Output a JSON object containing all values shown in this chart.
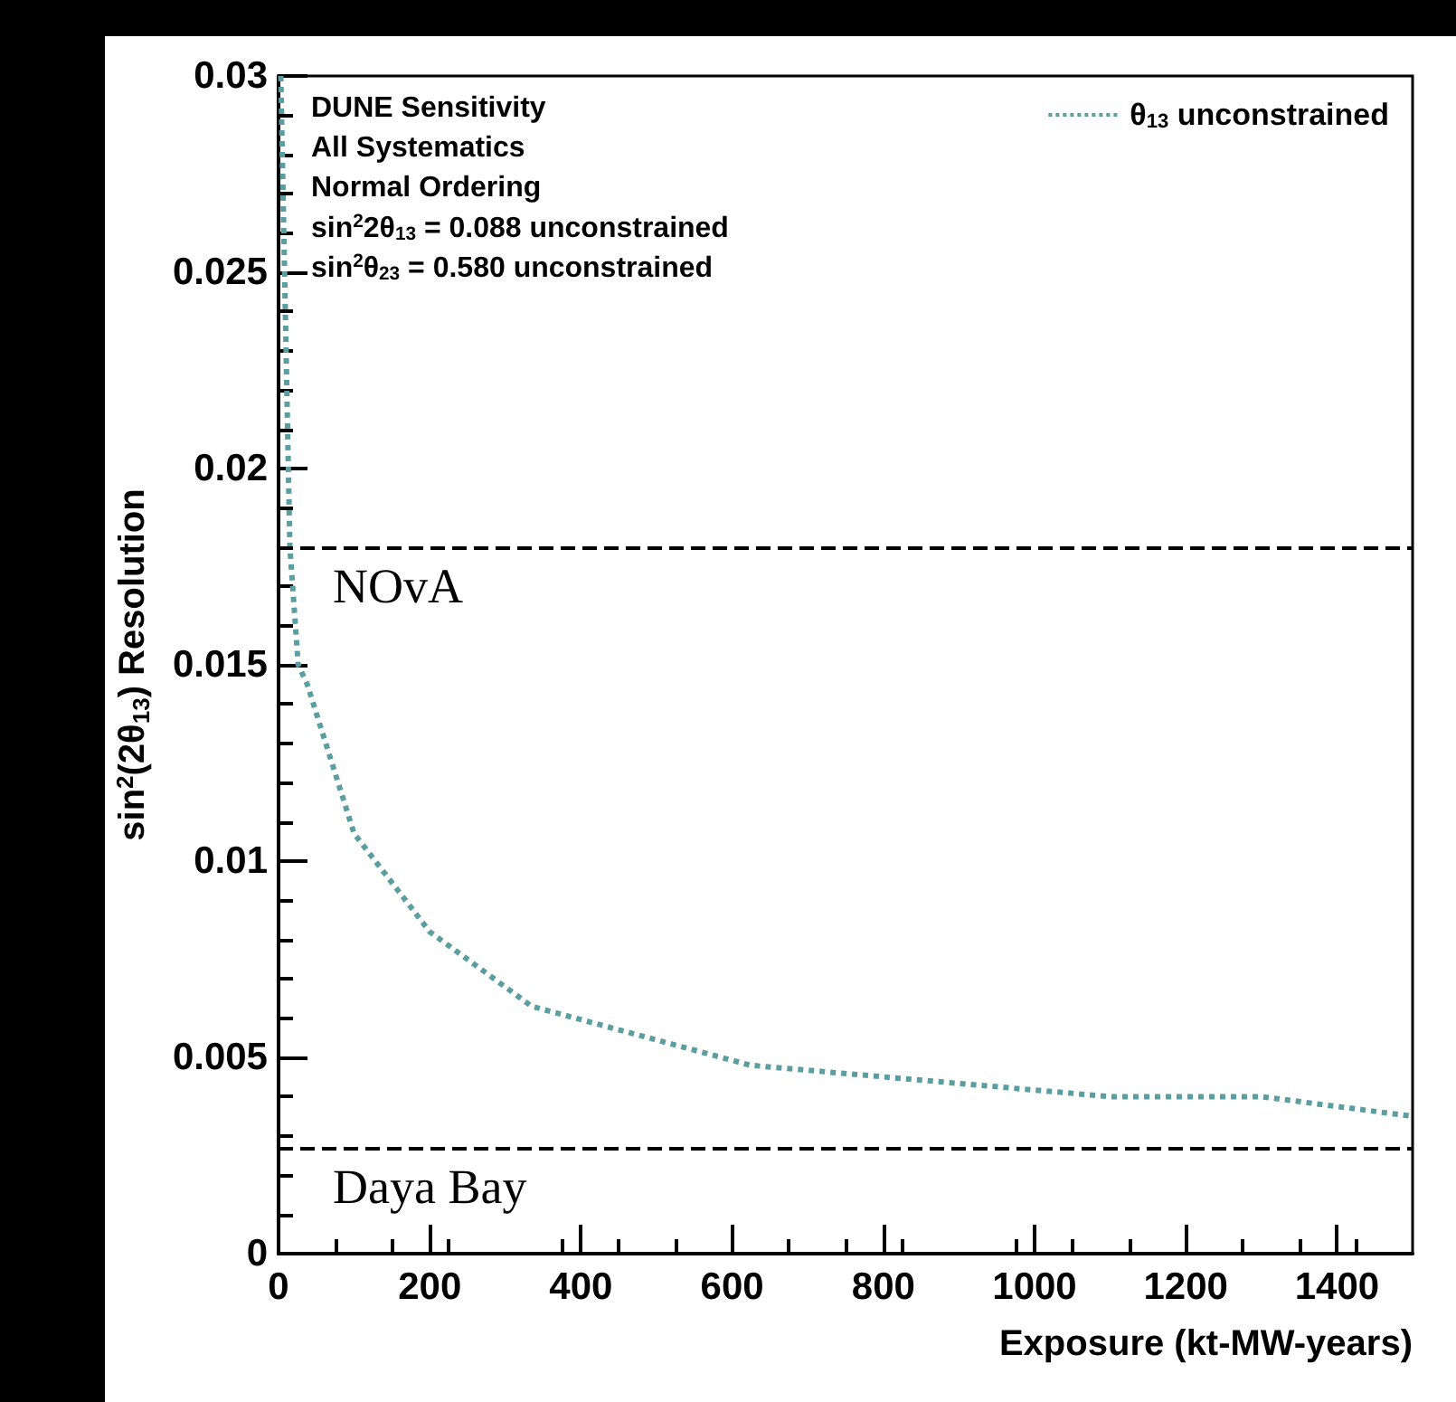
{
  "chart_data": {
    "type": "line",
    "xlabel": "Exposure (kt-MW-years)",
    "ylabel": "sin$^{2}$(2θ$_{13}$) Resolution",
    "x": [
      3,
      15,
      26,
      38,
      100,
      200,
      335,
      624,
      1100,
      1300,
      1500
    ],
    "series": [
      {
        "name": "θ$_{13}$ unconstrained",
        "color": "#5a9ea0",
        "line_style": "dotted",
        "marker": "none",
        "values": [
          0.03,
          0.018,
          0.015,
          0.0145,
          0.0107,
          0.0082,
          0.0063,
          0.0048,
          0.004,
          0.004,
          0.0035
        ]
      }
    ],
    "xlim": [
      0,
      1500
    ],
    "xticks": [
      0,
      200,
      400,
      600,
      800,
      1000,
      1200,
      1400
    ],
    "ylim": [
      0,
      0.03
    ],
    "yticks": [
      0,
      0.005,
      0.01,
      0.015,
      0.02,
      0.025,
      0.03
    ],
    "ref_lines": [
      {
        "axis": "y",
        "value": 0.018,
        "label": "NOvA",
        "color": "#000000",
        "line_style": "dashed"
      },
      {
        "axis": "y",
        "value": 0.0027,
        "label": "Daya Bay",
        "color": "#000000",
        "line_style": "dashed"
      }
    ],
    "annotations": [
      "DUNE Sensitivity",
      "All Systematics",
      "Normal Ordering",
      "sin$^{2}$2θ$_{13}$ = 0.088 unconstrained",
      "sin$^{2}$θ$_{23}$ = 0.580 unconstrained"
    ],
    "legend": "top right",
    "grid": false
  }
}
